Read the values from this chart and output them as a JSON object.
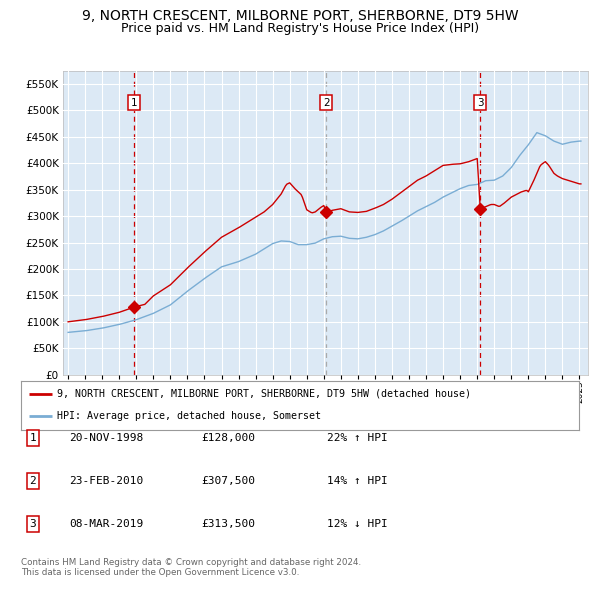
{
  "title": "9, NORTH CRESCENT, MILBORNE PORT, SHERBORNE, DT9 5HW",
  "subtitle": "Price paid vs. HM Land Registry's House Price Index (HPI)",
  "legend_line1": "9, NORTH CRESCENT, MILBORNE PORT, SHERBORNE, DT9 5HW (detached house)",
  "legend_line2": "HPI: Average price, detached house, Somerset",
  "footer1": "Contains HM Land Registry data © Crown copyright and database right 2024.",
  "footer2": "This data is licensed under the Open Government Licence v3.0.",
  "transactions": [
    {
      "num": 1,
      "date": "20-NOV-1998",
      "price": "£128,000",
      "hpi_rel": "22% ↑ HPI",
      "date_x": 1998.88,
      "price_val": 128000
    },
    {
      "num": 2,
      "date": "23-FEB-2010",
      "price": "£307,500",
      "hpi_rel": "14% ↑ HPI",
      "date_x": 2010.15,
      "price_val": 307500
    },
    {
      "num": 3,
      "date": "08-MAR-2019",
      "price": "£313,500",
      "hpi_rel": "12% ↓ HPI",
      "date_x": 2019.18,
      "price_val": 313500
    }
  ],
  "red_color": "#cc0000",
  "blue_color": "#7aadd4",
  "bg_color": "#dce9f5",
  "grid_color": "#c8d8e8",
  "vline1_color": "#cc0000",
  "vline2_color": "#aaaaaa",
  "vline3_color": "#cc0000",
  "title_fontsize": 10,
  "subtitle_fontsize": 9,
  "ylim": [
    0,
    575000
  ],
  "yticks": [
    0,
    50000,
    100000,
    150000,
    200000,
    250000,
    300000,
    350000,
    400000,
    450000,
    500000,
    550000
  ],
  "xlim_start": 1994.7,
  "xlim_end": 2025.5,
  "hpi_anchors": [
    [
      1995.0,
      80000
    ],
    [
      1996.0,
      83000
    ],
    [
      1997.0,
      88000
    ],
    [
      1998.0,
      95000
    ],
    [
      1999.0,
      104000
    ],
    [
      2000.0,
      116000
    ],
    [
      2001.0,
      132000
    ],
    [
      2002.0,
      158000
    ],
    [
      2003.0,
      182000
    ],
    [
      2004.0,
      204000
    ],
    [
      2005.0,
      214000
    ],
    [
      2006.0,
      228000
    ],
    [
      2007.0,
      248000
    ],
    [
      2007.5,
      253000
    ],
    [
      2008.0,
      252000
    ],
    [
      2008.5,
      246000
    ],
    [
      2009.0,
      246000
    ],
    [
      2009.5,
      249000
    ],
    [
      2010.0,
      257000
    ],
    [
      2010.5,
      261000
    ],
    [
      2011.0,
      262000
    ],
    [
      2011.5,
      258000
    ],
    [
      2012.0,
      257000
    ],
    [
      2012.5,
      260000
    ],
    [
      2013.0,
      265000
    ],
    [
      2013.5,
      272000
    ],
    [
      2014.0,
      281000
    ],
    [
      2014.5,
      290000
    ],
    [
      2015.0,
      300000
    ],
    [
      2015.5,
      310000
    ],
    [
      2016.0,
      318000
    ],
    [
      2016.5,
      326000
    ],
    [
      2017.0,
      336000
    ],
    [
      2017.5,
      344000
    ],
    [
      2018.0,
      352000
    ],
    [
      2018.5,
      358000
    ],
    [
      2019.0,
      360000
    ],
    [
      2019.5,
      367000
    ],
    [
      2020.0,
      368000
    ],
    [
      2020.5,
      376000
    ],
    [
      2021.0,
      392000
    ],
    [
      2021.5,
      415000
    ],
    [
      2022.0,
      435000
    ],
    [
      2022.5,
      458000
    ],
    [
      2023.0,
      452000
    ],
    [
      2023.5,
      442000
    ],
    [
      2024.0,
      436000
    ],
    [
      2024.5,
      440000
    ],
    [
      2025.0,
      442000
    ]
  ],
  "red_anchors": [
    [
      1995.0,
      100000
    ],
    [
      1996.0,
      104000
    ],
    [
      1997.0,
      110000
    ],
    [
      1998.0,
      118000
    ],
    [
      1998.88,
      128000
    ],
    [
      1999.5,
      133000
    ],
    [
      2000.0,
      149000
    ],
    [
      2001.0,
      170000
    ],
    [
      2002.0,
      202000
    ],
    [
      2003.0,
      232000
    ],
    [
      2004.0,
      260000
    ],
    [
      2005.0,
      278000
    ],
    [
      2006.0,
      298000
    ],
    [
      2006.5,
      308000
    ],
    [
      2007.0,
      322000
    ],
    [
      2007.5,
      342000
    ],
    [
      2007.8,
      360000
    ],
    [
      2008.0,
      363000
    ],
    [
      2008.3,
      352000
    ],
    [
      2008.7,
      340000
    ],
    [
      2009.0,
      312000
    ],
    [
      2009.3,
      306000
    ],
    [
      2009.5,
      308000
    ],
    [
      2009.8,
      316000
    ],
    [
      2010.0,
      320000
    ],
    [
      2010.15,
      307500
    ],
    [
      2010.5,
      311000
    ],
    [
      2011.0,
      314000
    ],
    [
      2011.5,
      308000
    ],
    [
      2012.0,
      307000
    ],
    [
      2012.5,
      309000
    ],
    [
      2013.0,
      315000
    ],
    [
      2013.5,
      322000
    ],
    [
      2014.0,
      332000
    ],
    [
      2014.5,
      344000
    ],
    [
      2015.0,
      356000
    ],
    [
      2015.5,
      368000
    ],
    [
      2016.0,
      376000
    ],
    [
      2016.5,
      386000
    ],
    [
      2017.0,
      396000
    ],
    [
      2017.5,
      398000
    ],
    [
      2018.0,
      399000
    ],
    [
      2018.5,
      403000
    ],
    [
      2019.0,
      409000
    ],
    [
      2019.18,
      313500
    ],
    [
      2019.5,
      318000
    ],
    [
      2019.8,
      322000
    ],
    [
      2020.0,
      322000
    ],
    [
      2020.3,
      318000
    ],
    [
      2020.6,
      325000
    ],
    [
      2021.0,
      336000
    ],
    [
      2021.3,
      341000
    ],
    [
      2021.6,
      346000
    ],
    [
      2021.9,
      349000
    ],
    [
      2022.0,
      346000
    ],
    [
      2022.3,
      366000
    ],
    [
      2022.5,
      381000
    ],
    [
      2022.7,
      396000
    ],
    [
      2022.9,
      401000
    ],
    [
      2023.0,
      403000
    ],
    [
      2023.2,
      396000
    ],
    [
      2023.5,
      381000
    ],
    [
      2023.7,
      376000
    ],
    [
      2024.0,
      371000
    ],
    [
      2024.5,
      366000
    ],
    [
      2025.0,
      361000
    ]
  ]
}
